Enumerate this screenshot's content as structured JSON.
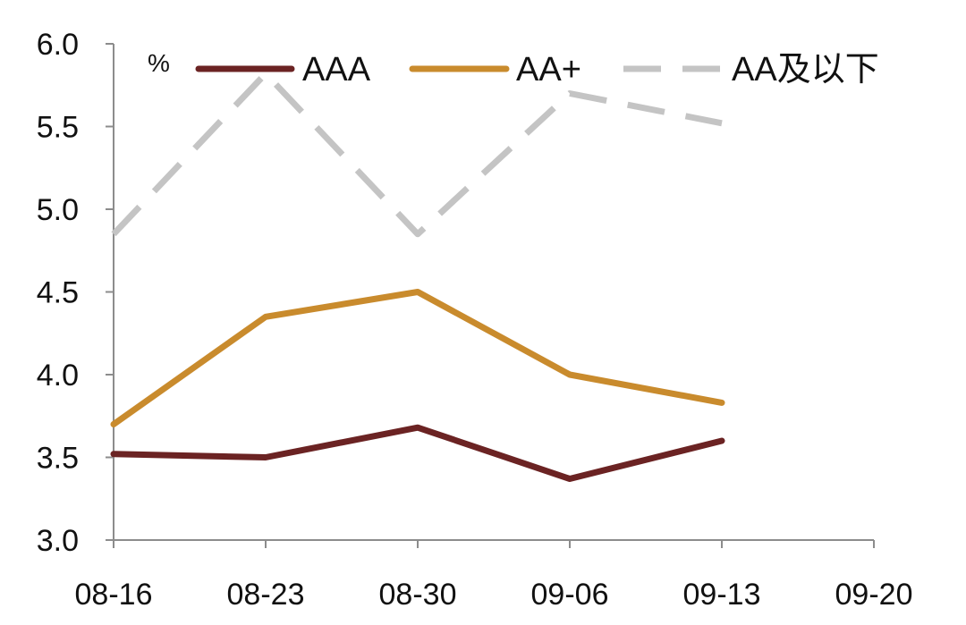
{
  "chart_data": {
    "type": "line",
    "title": "",
    "xlabel": "",
    "ylabel": "",
    "unit": "%",
    "categories": [
      "08-16",
      "08-23",
      "08-30",
      "09-06",
      "09-13",
      "09-20"
    ],
    "y_ticks": [
      "3.0",
      "3.5",
      "4.0",
      "4.5",
      "5.0",
      "5.5",
      "6.0"
    ],
    "ylim": [
      3.0,
      6.0
    ],
    "grid": false,
    "legend_position": "top",
    "series": [
      {
        "name": "AAA",
        "color": "#6B2323",
        "dash": "solid",
        "values": [
          3.52,
          3.5,
          3.68,
          3.37,
          3.6,
          null
        ]
      },
      {
        "name": "AA+",
        "color": "#C98B2D",
        "dash": "solid",
        "values": [
          3.7,
          4.35,
          4.5,
          4.0,
          3.83,
          null
        ]
      },
      {
        "name": "AA及以下",
        "color": "#C4C4C4",
        "dash": "dashed",
        "values": [
          4.85,
          5.82,
          4.85,
          5.7,
          5.52,
          null
        ]
      }
    ]
  }
}
